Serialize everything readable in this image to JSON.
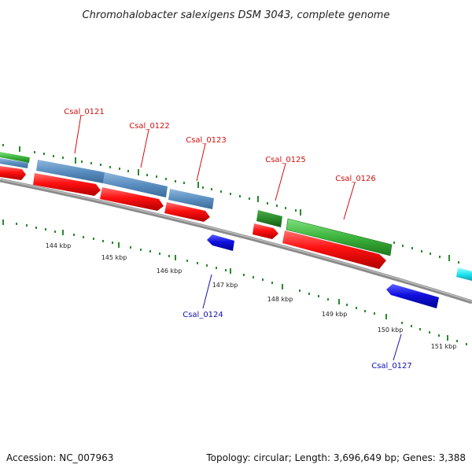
{
  "header": {
    "title": "Chromohalobacter salexigens DSM 3043, complete genome"
  },
  "footer": {
    "accession": "Accession: NC_007963",
    "summary": "Topology: circular; Length: 3,696,649 bp; Genes: 3,388"
  },
  "colors": {
    "backbone": "#8a8a8a",
    "forward_cds": "#ff1010",
    "reverse_cds": "#1010e0",
    "steelblue_feature": "#5a8ec0",
    "green_feature": "#3cb43c",
    "darkgreen_feature": "#2a8a2a",
    "cyan_feature": "#20e6f0",
    "tick": "#2a8a2a",
    "forward_label": "#d01010",
    "reverse_label": "#1010b0"
  },
  "scale": {
    "ticks": [
      "144 kbp",
      "145 kbp",
      "146 kbp",
      "147 kbp",
      "148 kbp",
      "149 kbp",
      "150 kbp",
      "151 kbp"
    ]
  },
  "genes": [
    {
      "name": "Csal_0121",
      "strand": "forward"
    },
    {
      "name": "Csal_0122",
      "strand": "forward"
    },
    {
      "name": "Csal_0123",
      "strand": "forward"
    },
    {
      "name": "Csal_0124",
      "strand": "reverse"
    },
    {
      "name": "Csal_0125",
      "strand": "forward"
    },
    {
      "name": "Csal_0126",
      "strand": "forward"
    },
    {
      "name": "Csal_0127",
      "strand": "reverse"
    }
  ]
}
